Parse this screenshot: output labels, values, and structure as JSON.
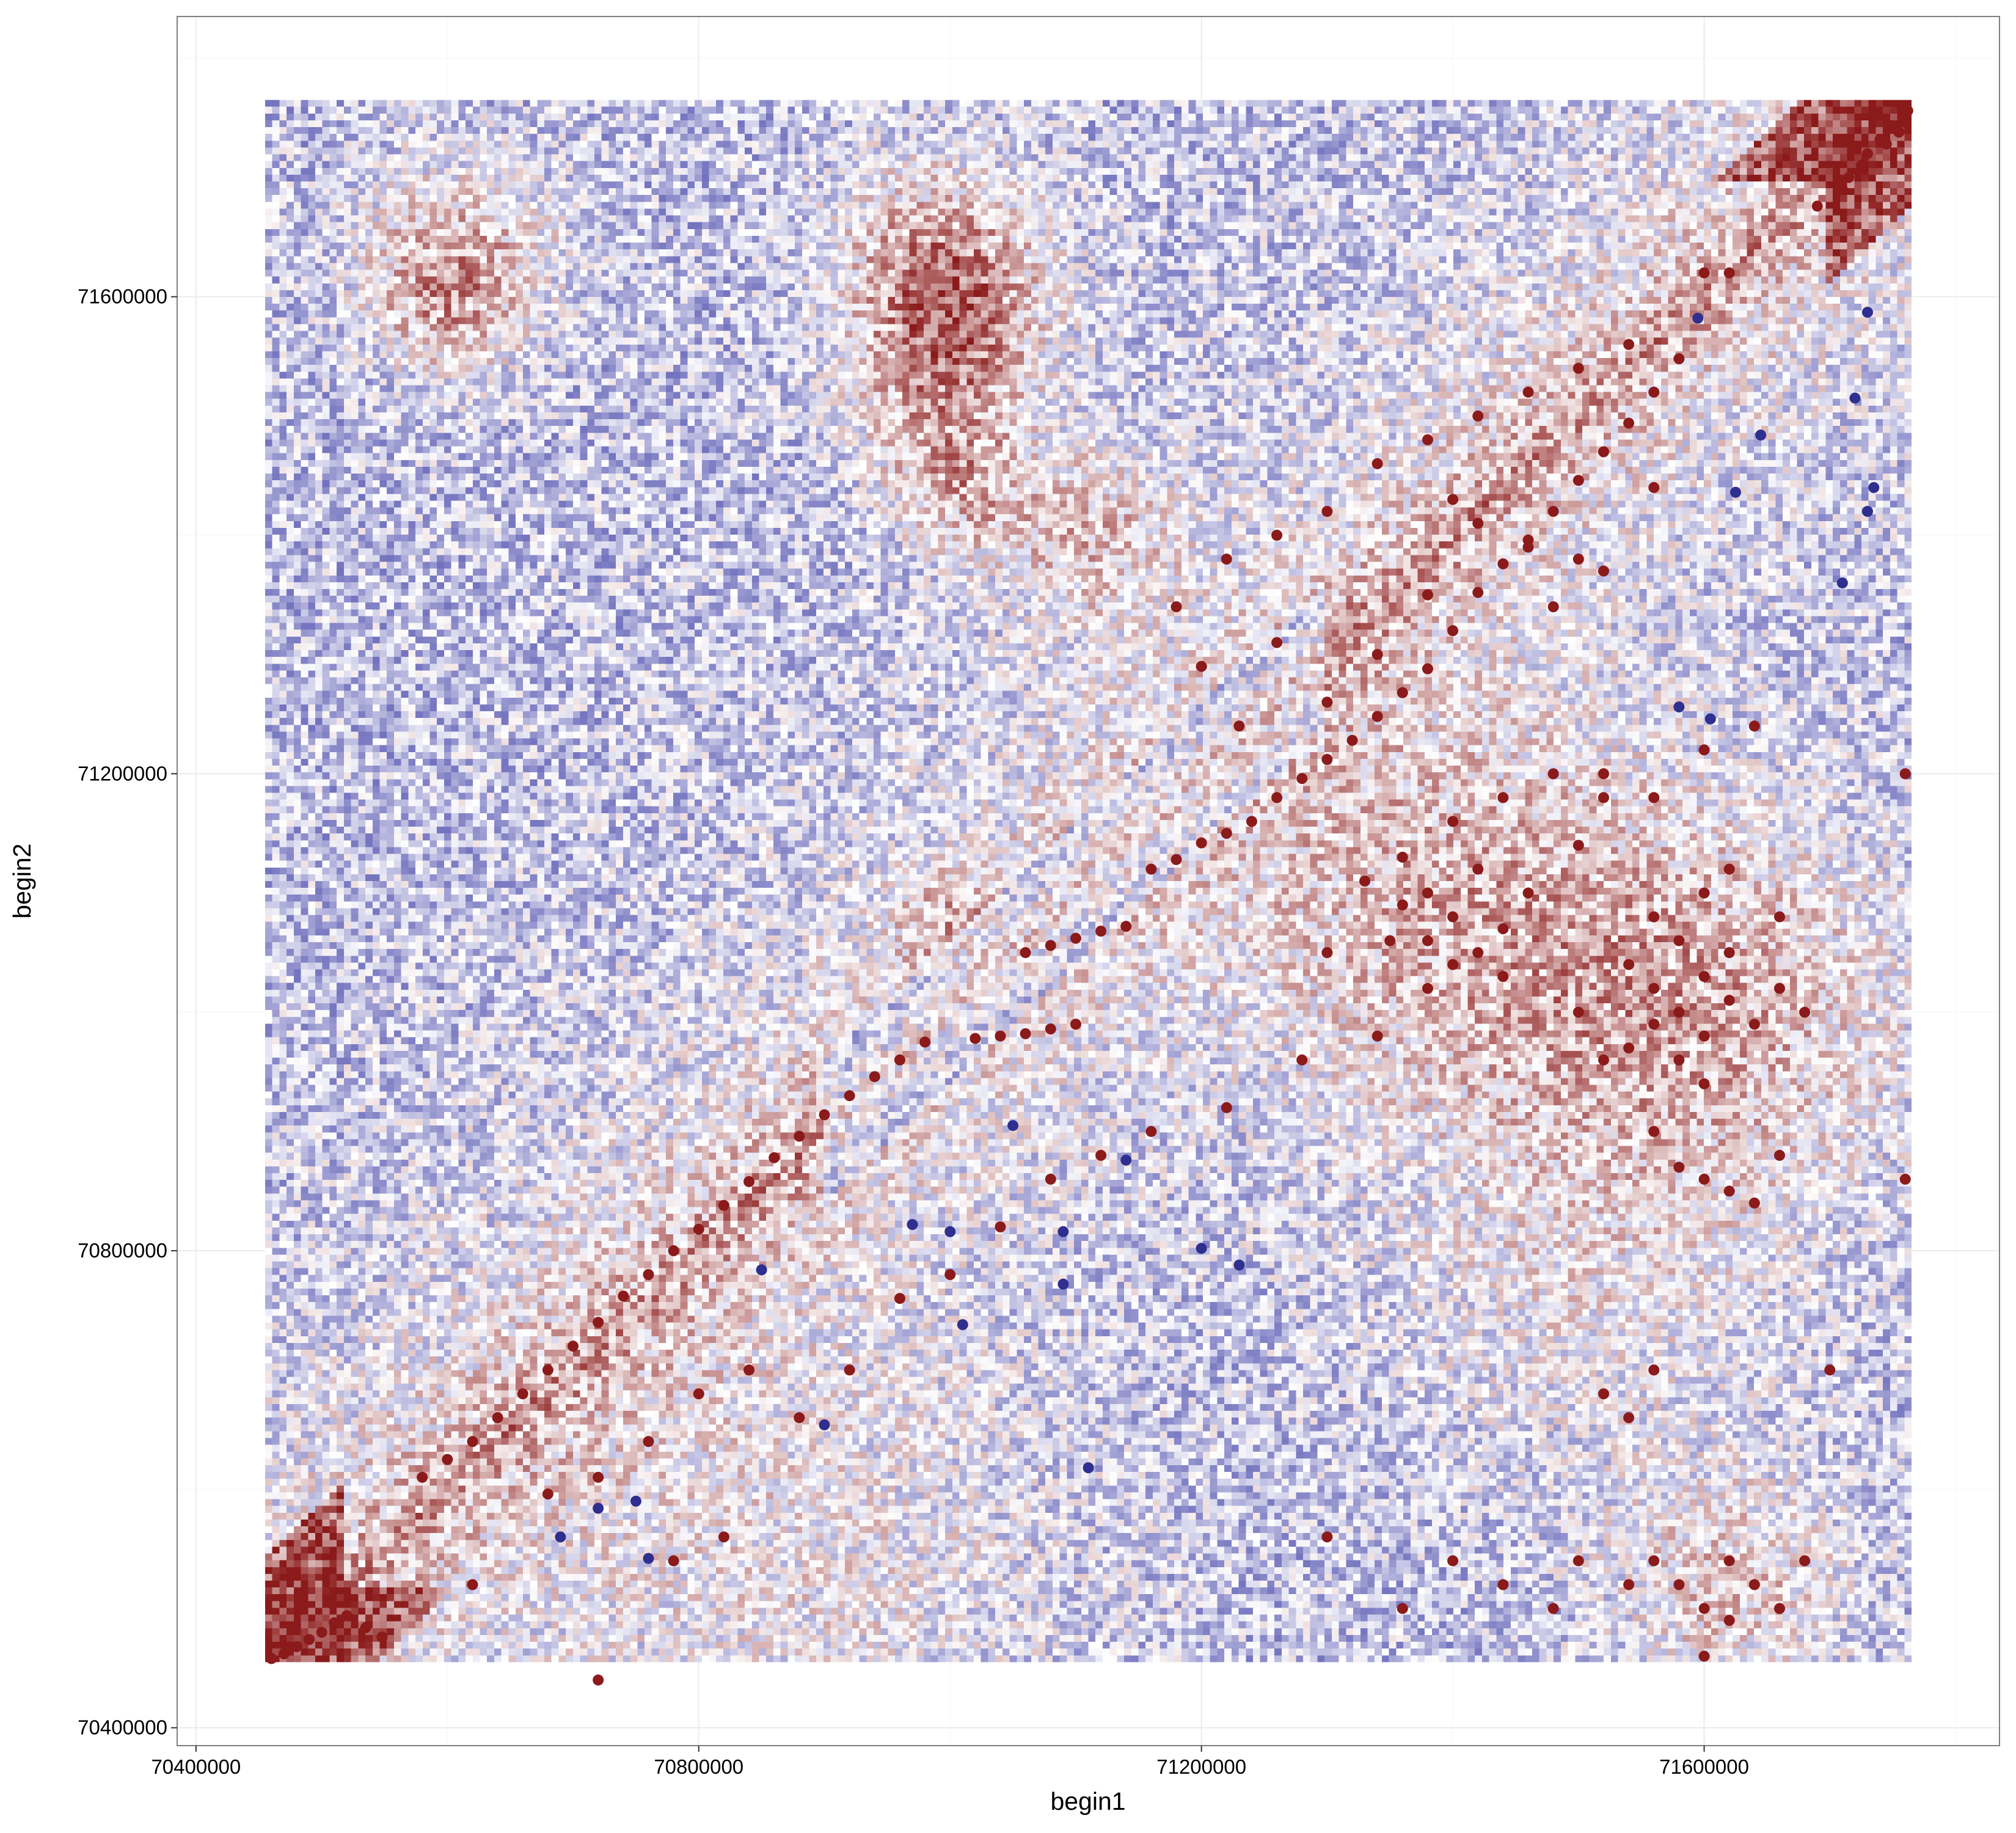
{
  "chart_data": {
    "type": "heatmap",
    "title": "",
    "xlabel": "begin1",
    "ylabel": "begin2",
    "xlim": [
      70385000,
      71835000
    ],
    "ylim": [
      70385000,
      71835000
    ],
    "x_ticks": [
      70400000,
      70800000,
      71200000,
      71600000
    ],
    "y_ticks": [
      70400000,
      70800000,
      71200000,
      71600000
    ],
    "x_tick_labels": [
      "70400000",
      "70800000",
      "71200000",
      "71600000"
    ],
    "y_tick_labels": [
      "70400000",
      "70800000",
      "71200000",
      "71600000"
    ],
    "grid": true,
    "heatmap_extent": {
      "x": [
        70455000,
        71765000
      ],
      "y": [
        70455000,
        71765000
      ]
    },
    "heatmap_colors": {
      "positive": "#8b1a1a",
      "neutral": "#ffffff",
      "negative": "#3a3aa5"
    },
    "point_series": [
      {
        "color": "#8b1a1a",
        "points": [
          [
            70460000,
            70458000
          ],
          [
            70470000,
            70462000
          ],
          [
            70480000,
            70468000
          ],
          [
            70490000,
            70474000
          ],
          [
            70500000,
            70480000
          ],
          [
            70510000,
            70488000
          ],
          [
            70520000,
            70494000
          ],
          [
            70535000,
            70484000
          ],
          [
            70548000,
            70476000
          ],
          [
            71730000,
            71720000
          ],
          [
            71740000,
            71732000
          ],
          [
            71750000,
            71742000
          ],
          [
            71760000,
            71752000
          ],
          [
            71725000,
            71710000
          ],
          [
            71715000,
            71700000
          ],
          [
            71745000,
            71728000
          ],
          [
            71755000,
            71738000
          ],
          [
            71762000,
            71756000
          ],
          [
            71710000,
            71690000
          ],
          [
            71690000,
            71676000
          ],
          [
            70580000,
            70610000
          ],
          [
            70600000,
            70625000
          ],
          [
            70620000,
            70640000
          ],
          [
            70640000,
            70660000
          ],
          [
            70660000,
            70680000
          ],
          [
            70680000,
            70700000
          ],
          [
            70700000,
            70720000
          ],
          [
            70720000,
            70740000
          ],
          [
            70740000,
            70762000
          ],
          [
            70760000,
            70780000
          ],
          [
            70780000,
            70800000
          ],
          [
            70800000,
            70818000
          ],
          [
            70820000,
            70838000
          ],
          [
            70840000,
            70858000
          ],
          [
            70860000,
            70878000
          ],
          [
            70880000,
            70896000
          ],
          [
            70900000,
            70914000
          ],
          [
            70920000,
            70930000
          ],
          [
            70940000,
            70946000
          ],
          [
            70960000,
            70960000
          ],
          [
            70980000,
            70975000
          ],
          [
            71020000,
            70978000
          ],
          [
            71040000,
            70980000
          ],
          [
            71060000,
            70982000
          ],
          [
            71080000,
            70986000
          ],
          [
            71100000,
            70990000
          ],
          [
            71060000,
            71050000
          ],
          [
            71080000,
            71056000
          ],
          [
            71100000,
            71062000
          ],
          [
            71120000,
            71068000
          ],
          [
            71140000,
            71072000
          ],
          [
            71160000,
            71120000
          ],
          [
            71180000,
            71128000
          ],
          [
            71200000,
            71142000
          ],
          [
            71220000,
            71150000
          ],
          [
            71240000,
            71160000
          ],
          [
            71260000,
            71180000
          ],
          [
            71280000,
            71196000
          ],
          [
            71300000,
            71212000
          ],
          [
            71320000,
            71228000
          ],
          [
            71340000,
            71248000
          ],
          [
            71360000,
            71268000
          ],
          [
            71380000,
            71288000
          ],
          [
            71400000,
            71320000
          ],
          [
            71420000,
            71352000
          ],
          [
            71440000,
            71376000
          ],
          [
            71460000,
            71396000
          ],
          [
            71480000,
            71420000
          ],
          [
            71500000,
            71446000
          ],
          [
            71520000,
            71470000
          ],
          [
            71540000,
            71494000
          ],
          [
            71560000,
            71520000
          ],
          [
            71580000,
            71548000
          ],
          [
            70680000,
            70596000
          ],
          [
            70720000,
            70610000
          ],
          [
            70760000,
            70640000
          ],
          [
            70800000,
            70680000
          ],
          [
            70840000,
            70700000
          ],
          [
            70880000,
            70660000
          ],
          [
            70920000,
            70700000
          ],
          [
            70780000,
            70540000
          ],
          [
            70820000,
            70560000
          ],
          [
            70620000,
            70520000
          ],
          [
            70720000,
            70440000
          ],
          [
            70960000,
            70760000
          ],
          [
            71000000,
            70780000
          ],
          [
            71040000,
            70820000
          ],
          [
            71080000,
            70860000
          ],
          [
            71120000,
            70880000
          ],
          [
            71160000,
            70900000
          ],
          [
            71220000,
            70920000
          ],
          [
            71280000,
            70960000
          ],
          [
            71340000,
            70980000
          ],
          [
            71380000,
            71060000
          ],
          [
            71400000,
            71080000
          ],
          [
            71420000,
            71050000
          ],
          [
            71380000,
            71020000
          ],
          [
            71360000,
            71090000
          ],
          [
            71440000,
            71070000
          ],
          [
            71400000,
            71040000
          ],
          [
            71380000,
            71100000
          ],
          [
            71420000,
            71120000
          ],
          [
            71350000,
            71060000
          ],
          [
            71440000,
            71030000
          ],
          [
            71460000,
            71100000
          ],
          [
            71360000,
            71130000
          ],
          [
            71400000,
            71160000
          ],
          [
            71440000,
            71180000
          ],
          [
            71480000,
            71200000
          ],
          [
            71500000,
            71140000
          ],
          [
            71520000,
            71180000
          ],
          [
            71330000,
            71110000
          ],
          [
            71300000,
            71050000
          ],
          [
            71540000,
            71040000
          ],
          [
            71560000,
            71020000
          ],
          [
            71580000,
            71000000
          ],
          [
            71600000,
            71030000
          ],
          [
            71620000,
            71010000
          ],
          [
            71560000,
            70990000
          ],
          [
            71580000,
            71060000
          ],
          [
            71600000,
            70980000
          ],
          [
            71620000,
            71050000
          ],
          [
            71540000,
            70970000
          ],
          [
            71500000,
            71000000
          ],
          [
            71520000,
            70960000
          ],
          [
            71640000,
            70990000
          ],
          [
            71660000,
            71020000
          ],
          [
            71680000,
            71000000
          ],
          [
            71560000,
            71080000
          ],
          [
            71600000,
            71100000
          ],
          [
            71620000,
            71120000
          ],
          [
            71660000,
            71080000
          ],
          [
            71580000,
            70960000
          ],
          [
            71600000,
            70940000
          ],
          [
            71520000,
            71200000
          ],
          [
            71560000,
            71180000
          ],
          [
            71600000,
            71220000
          ],
          [
            71640000,
            71240000
          ],
          [
            71580000,
            70870000
          ],
          [
            71600000,
            70860000
          ],
          [
            71620000,
            70850000
          ],
          [
            71560000,
            70900000
          ],
          [
            71640000,
            70840000
          ],
          [
            71660000,
            70880000
          ],
          [
            71700000,
            70700000
          ],
          [
            71760000,
            71200000
          ],
          [
            71760000,
            70860000
          ],
          [
            71520000,
            70680000
          ],
          [
            71540000,
            70660000
          ],
          [
            71560000,
            70700000
          ],
          [
            71580000,
            70520000
          ],
          [
            71600000,
            70500000
          ],
          [
            71620000,
            70540000
          ],
          [
            71640000,
            70520000
          ],
          [
            71660000,
            70500000
          ],
          [
            71680000,
            70540000
          ],
          [
            71620000,
            70490000
          ],
          [
            71600000,
            70460000
          ],
          [
            71560000,
            70540000
          ],
          [
            71540000,
            70520000
          ],
          [
            71500000,
            70540000
          ],
          [
            71480000,
            70500000
          ],
          [
            71440000,
            70520000
          ],
          [
            71400000,
            70540000
          ],
          [
            71360000,
            70500000
          ],
          [
            71300000,
            70560000
          ],
          [
            71600000,
            71620000
          ],
          [
            71620000,
            71620000
          ],
          [
            71560000,
            71440000
          ],
          [
            71520000,
            71370000
          ],
          [
            71480000,
            71340000
          ],
          [
            71500000,
            71380000
          ],
          [
            71460000,
            71390000
          ],
          [
            71420000,
            71410000
          ],
          [
            71400000,
            71430000
          ],
          [
            71380000,
            71350000
          ],
          [
            71340000,
            71300000
          ],
          [
            71300000,
            71260000
          ],
          [
            71260000,
            71310000
          ],
          [
            71230000,
            71240000
          ],
          [
            71200000,
            71290000
          ],
          [
            71180000,
            71340000
          ],
          [
            71220000,
            71380000
          ],
          [
            71260000,
            71400000
          ],
          [
            71300000,
            71420000
          ],
          [
            71340000,
            71460000
          ],
          [
            71380000,
            71480000
          ],
          [
            71420000,
            71500000
          ],
          [
            71460000,
            71520000
          ],
          [
            71500000,
            71540000
          ],
          [
            71540000,
            71560000
          ]
        ]
      },
      {
        "color": "#2f2f8f",
        "points": [
          [
            71595000,
            71582000
          ],
          [
            71730000,
            71587000
          ],
          [
            71720000,
            71515000
          ],
          [
            71645000,
            71484000
          ],
          [
            71625000,
            71436000
          ],
          [
            71735000,
            71440000
          ],
          [
            71730000,
            71420000
          ],
          [
            71710000,
            71360000
          ],
          [
            71580000,
            71256000
          ],
          [
            71605000,
            71246000
          ],
          [
            71050000,
            70905000
          ],
          [
            71140000,
            70876000
          ],
          [
            70970000,
            70822000
          ],
          [
            71000000,
            70816000
          ],
          [
            71090000,
            70816000
          ],
          [
            71200000,
            70802000
          ],
          [
            71230000,
            70788000
          ],
          [
            71090000,
            70772000
          ],
          [
            71010000,
            70738000
          ],
          [
            70850000,
            70784000
          ],
          [
            70900000,
            70654000
          ],
          [
            71110000,
            70618000
          ],
          [
            70750000,
            70590000
          ],
          [
            70720000,
            70584000
          ],
          [
            70690000,
            70560000
          ],
          [
            70760000,
            70542000
          ]
        ]
      }
    ]
  }
}
